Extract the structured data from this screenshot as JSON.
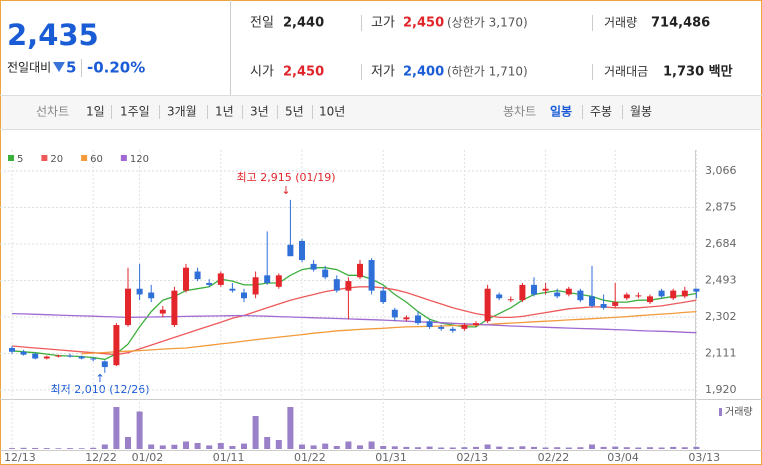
{
  "header": {
    "price": "2,435",
    "change_label": "전일대비",
    "change": "5",
    "change_rate": "-0.20%",
    "stats": [
      {
        "label": "전일",
        "value": "2,440"
      },
      {
        "label": "고가",
        "value": "2,450",
        "note": "(상한가 3,170)"
      },
      {
        "label": "거래량",
        "value": "714,486"
      },
      {
        "label": "시가",
        "value": "2,450"
      },
      {
        "label": "저가",
        "value": "2,400",
        "note": "(하한가 1,710)"
      },
      {
        "label": "거래대금",
        "value": "1,730 백만"
      }
    ]
  },
  "toolbar": {
    "line_chart": {
      "label": "선차트",
      "periods": [
        "1일",
        "1주일",
        "3개월",
        "1년",
        "3년",
        "5년",
        "10년"
      ]
    },
    "candle_chart": {
      "label": "봉차트",
      "periods": [
        "일봉",
        "주봉",
        "월봉"
      ]
    }
  },
  "chart_data": {
    "type": "candlestick",
    "annotations": [
      "최고 2,915 (01/19)",
      "최저 2,010 (12/26)"
    ],
    "categories": [
      "12/13",
      null,
      null,
      null,
      null,
      null,
      null,
      "12/22",
      null,
      null,
      null,
      "01/02",
      null,
      null,
      null,
      null,
      null,
      null,
      "01/11",
      null,
      null,
      null,
      null,
      null,
      null,
      "01/22",
      null,
      null,
      null,
      null,
      null,
      null,
      "01/31",
      null,
      null,
      null,
      null,
      null,
      null,
      "02/13",
      null,
      null,
      null,
      null,
      null,
      null,
      "02/22",
      null,
      null,
      null,
      null,
      null,
      "03/04",
      null,
      null,
      null,
      null,
      null,
      null,
      "03/13"
    ],
    "up_color": "#e3262c",
    "down_color": "#2f6fd8",
    "open": [
      2140,
      2120,
      2110,
      2085,
      2095,
      2100,
      2095,
      2085,
      2070,
      2050,
      2260,
      2450,
      2430,
      2320,
      2260,
      2440,
      2540,
      2480,
      2470,
      2450,
      2430,
      2420,
      2520,
      2460,
      2680,
      2700,
      2580,
      2550,
      2500,
      2440,
      2510,
      2600,
      2440,
      2340,
      2290,
      2310,
      2280,
      2250,
      2240,
      2240,
      2260,
      2280,
      2420,
      2390,
      2390,
      2470,
      2440,
      2430,
      2420,
      2440,
      2410,
      2370,
      2360,
      2400,
      2410,
      2380,
      2440,
      2400,
      2410,
      2450
    ],
    "high": [
      2150,
      2130,
      2115,
      2100,
      2105,
      2110,
      2100,
      2090,
      2075,
      2270,
      2560,
      2580,
      2470,
      2360,
      2460,
      2580,
      2560,
      2500,
      2540,
      2480,
      2450,
      2540,
      2750,
      2530,
      2915,
      2710,
      2600,
      2570,
      2520,
      2510,
      2600,
      2610,
      2460,
      2350,
      2310,
      2330,
      2290,
      2260,
      2250,
      2270,
      2280,
      2470,
      2430,
      2410,
      2480,
      2510,
      2480,
      2450,
      2460,
      2450,
      2570,
      2420,
      2480,
      2430,
      2430,
      2420,
      2450,
      2450,
      2460,
      2450
    ],
    "low": [
      2110,
      2100,
      2080,
      2080,
      2090,
      2090,
      2080,
      2070,
      2010,
      2045,
      2250,
      2390,
      2380,
      2300,
      2250,
      2430,
      2490,
      2460,
      2460,
      2430,
      2380,
      2400,
      2470,
      2450,
      2630,
      2590,
      2540,
      2500,
      2430,
      2290,
      2500,
      2420,
      2370,
      2280,
      2280,
      2260,
      2240,
      2230,
      2220,
      2230,
      2250,
      2270,
      2390,
      2380,
      2380,
      2410,
      2420,
      2400,
      2410,
      2380,
      2350,
      2340,
      2350,
      2390,
      2400,
      2370,
      2400,
      2390,
      2400,
      2400
    ],
    "close": [
      2120,
      2105,
      2085,
      2095,
      2100,
      2095,
      2085,
      2080,
      2040,
      2260,
      2450,
      2420,
      2400,
      2340,
      2440,
      2560,
      2500,
      2470,
      2530,
      2440,
      2400,
      2510,
      2480,
      2520,
      2620,
      2600,
      2550,
      2510,
      2440,
      2490,
      2580,
      2440,
      2380,
      2300,
      2300,
      2270,
      2250,
      2240,
      2230,
      2260,
      2270,
      2450,
      2400,
      2395,
      2470,
      2420,
      2450,
      2410,
      2450,
      2390,
      2360,
      2350,
      2380,
      2420,
      2415,
      2410,
      2410,
      2440,
      2440,
      2435
    ],
    "series": [
      {
        "name": "5",
        "color": "#3cae3c",
        "values": [
          2125,
          2120,
          2115,
          2108,
          2100,
          2098,
          2095,
          2090,
          2080,
          2110,
          2160,
          2250,
          2330,
          2390,
          2410,
          2440,
          2450,
          2460,
          2500,
          2490,
          2470,
          2470,
          2480,
          2480,
          2520,
          2550,
          2560,
          2560,
          2550,
          2520,
          2520,
          2500,
          2470,
          2420,
          2380,
          2330,
          2290,
          2270,
          2260,
          2250,
          2250,
          2290,
          2320,
          2350,
          2390,
          2420,
          2430,
          2440,
          2430,
          2420,
          2410,
          2390,
          2380,
          2380,
          2390,
          2390,
          2400,
          2410,
          2415,
          2425
        ]
      },
      {
        "name": "20",
        "color": "#ee5a5a",
        "values": [
          2150,
          2145,
          2140,
          2135,
          2130,
          2125,
          2120,
          2115,
          2110,
          2105,
          2115,
          2135,
          2155,
          2175,
          2195,
          2215,
          2235,
          2255,
          2275,
          2295,
          2310,
          2330,
          2350,
          2370,
          2390,
          2405,
          2420,
          2435,
          2445,
          2455,
          2460,
          2460,
          2455,
          2445,
          2430,
          2410,
          2390,
          2370,
          2350,
          2335,
          2320,
          2310,
          2300,
          2300,
          2305,
          2315,
          2325,
          2335,
          2345,
          2350,
          2355,
          2355,
          2350,
          2350,
          2350,
          2355,
          2360,
          2370,
          2380,
          2390
        ]
      },
      {
        "name": "60",
        "color": "#f39a3a",
        "values": [
          null,
          null,
          null,
          null,
          null,
          null,
          2110,
          2113,
          2116,
          2120,
          2123,
          2126,
          2130,
          2134,
          2137,
          2140,
          2147,
          2154,
          2161,
          2168,
          2176,
          2183,
          2190,
          2197,
          2203,
          2210,
          2217,
          2223,
          2230,
          2233,
          2237,
          2240,
          2243,
          2247,
          2250,
          2252,
          2253,
          2255,
          2257,
          2258,
          2260,
          2263,
          2267,
          2270,
          2273,
          2277,
          2280,
          2283,
          2287,
          2290,
          2293,
          2297,
          2300,
          2304,
          2309,
          2313,
          2317,
          2321,
          2326,
          2330
        ]
      },
      {
        "name": "120",
        "color": "#a06ad2",
        "values": [
          2320,
          2318,
          2316,
          2314,
          2312,
          2310,
          2308,
          2306,
          2304,
          2302,
          2300,
          2301,
          2302,
          2303,
          2304,
          2305,
          2306,
          2307,
          2308,
          2309,
          2310,
          2308,
          2306,
          2304,
          2302,
          2300,
          2298,
          2296,
          2294,
          2292,
          2290,
          2288,
          2286,
          2283,
          2280,
          2277,
          2275,
          2272,
          2269,
          2266,
          2264,
          2261,
          2258,
          2255,
          2253,
          2250,
          2248,
          2246,
          2244,
          2242,
          2240,
          2238,
          2236,
          2234,
          2231,
          2229,
          2227,
          2225,
          2222,
          2220
        ]
      }
    ],
    "ylim": [
      1920,
      3066
    ],
    "yticks": [
      {
        "value": 1920,
        "label": "1,920"
      },
      {
        "value": 2111,
        "label": "2,111"
      },
      {
        "value": 2302,
        "label": "2,302"
      },
      {
        "value": 2493,
        "label": "2,493"
      },
      {
        "value": 2684,
        "label": "2,684"
      },
      {
        "value": 2875,
        "label": "2,875"
      },
      {
        "value": 3066,
        "label": "3,066"
      }
    ],
    "grid": true,
    "volume": {
      "name": "거래량",
      "color": "#9a80c8",
      "ylim": [
        0,
        15000000
      ],
      "values": [
        300000,
        400000,
        350000,
        300000,
        250000,
        300000,
        250000,
        400000,
        1500000,
        14000000,
        4000000,
        12500000,
        1500000,
        1200000,
        1400000,
        2500000,
        2000000,
        1200000,
        2000000,
        1000000,
        1800000,
        11000000,
        4000000,
        3000000,
        14000000,
        1500000,
        1200000,
        1800000,
        1000000,
        2500000,
        1200000,
        2500000,
        1000000,
        900000,
        700000,
        600000,
        800000,
        500000,
        500000,
        600000,
        700000,
        1500000,
        800000,
        600000,
        900000,
        700000,
        500000,
        600000,
        500000,
        600000,
        1500000,
        700000,
        800000,
        600000,
        500000,
        600000,
        500000,
        700000,
        600000,
        714486
      ]
    }
  }
}
